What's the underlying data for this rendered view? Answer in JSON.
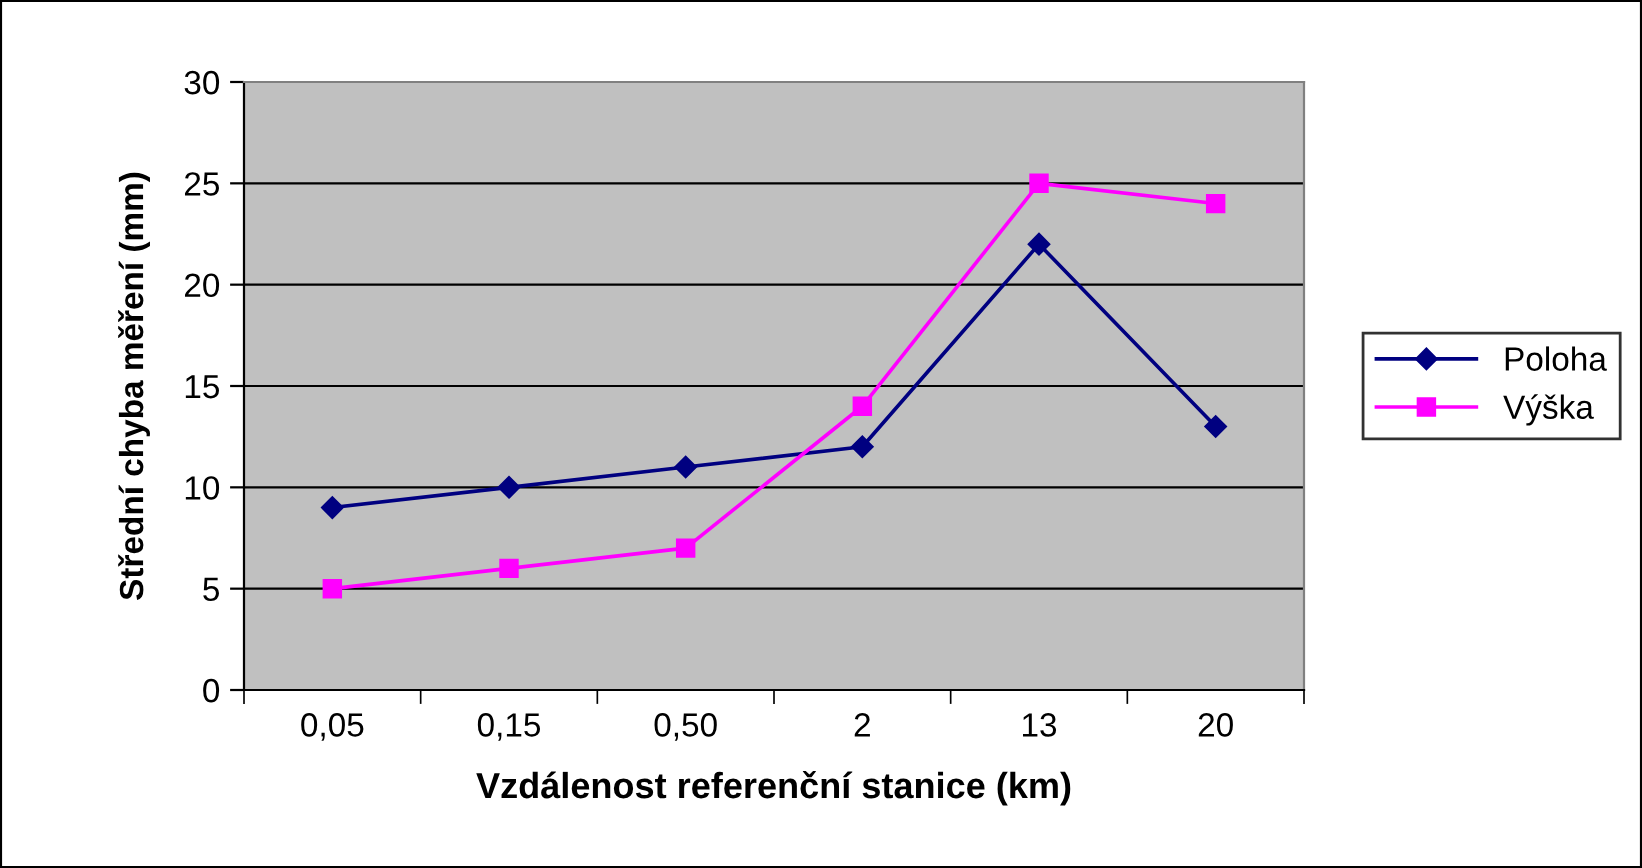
{
  "chart_data": {
    "type": "line",
    "xlabel": "Vzdálenost referenční stanice (km)",
    "ylabel": "Střední chyba měření (mm)",
    "categories": [
      "0,05",
      "0,15",
      "0,50",
      "2",
      "13",
      "20"
    ],
    "series": [
      {
        "name": "Poloha",
        "color": "#000080",
        "marker": "diamond",
        "values": [
          9,
          10,
          11,
          12,
          22,
          13
        ]
      },
      {
        "name": "Výška",
        "color": "#ff00ff",
        "marker": "square",
        "values": [
          5,
          6,
          7,
          14,
          25,
          24
        ]
      }
    ],
    "ylim": [
      0,
      30
    ],
    "yticks": [
      0,
      5,
      10,
      15,
      20,
      25,
      30
    ],
    "grid": "y",
    "legend": "right",
    "line_style": "solid"
  }
}
